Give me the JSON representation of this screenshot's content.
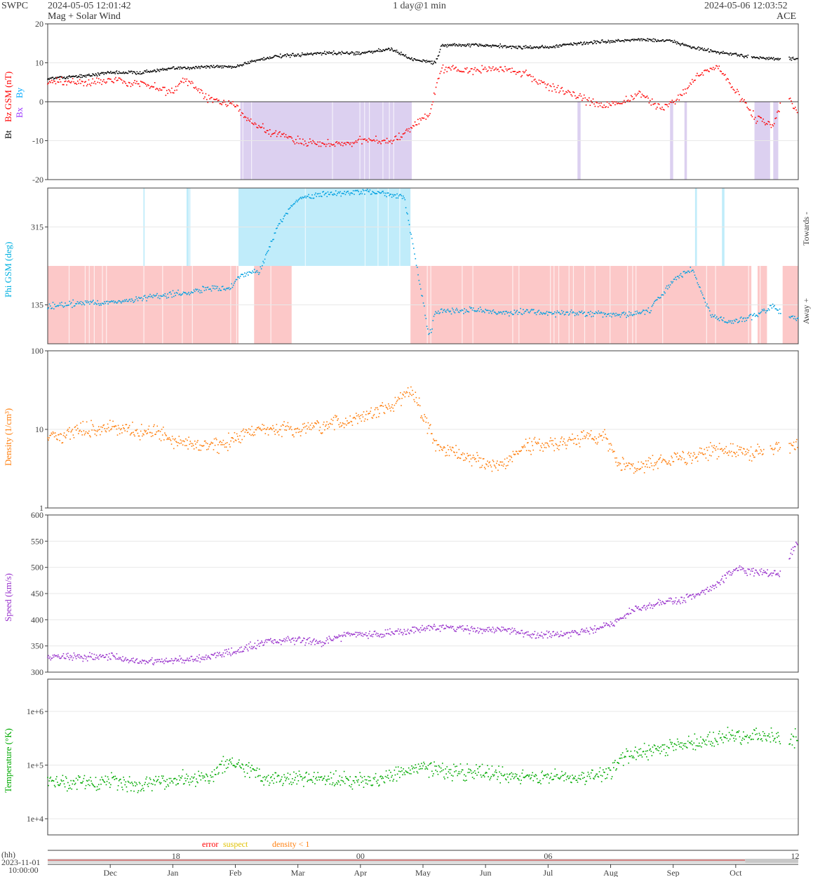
{
  "header": {
    "org": "SWPC",
    "start_time": "2024-05-05 12:01:42",
    "subtitle": "Mag + Solar Wind",
    "cadence": "1 day@1 min",
    "end_time": "2024-05-06 12:03:52",
    "source": "ACE"
  },
  "colors": {
    "bt": "#000000",
    "bz": "#ff0000",
    "bx": "#9933ff",
    "by": "#00aaff",
    "phi": "#00a0e0",
    "density": "#ff7f0e",
    "speed": "#9933cc",
    "temperature": "#00aa00",
    "bz_shade": "#dcd0f0",
    "towards_shade": "#c0ecfa",
    "away_shade": "#fcc8c8",
    "grid": "#e8e8e8"
  },
  "legend": {
    "error": "error",
    "suspect": "suspect",
    "density": "density < 1",
    "error_color": "#ff0000",
    "suspect_color": "#e0c000",
    "density_color": "#ff7f0e"
  },
  "time_axis": {
    "hh_label": "(hh)",
    "start_date": "2023-11-01",
    "start_clock": "10:00:00",
    "hour_ticks": [
      {
        "label": "18",
        "month": 2.05
      },
      {
        "label": "00",
        "month": 5.0
      },
      {
        "label": "06",
        "month": 8.0
      },
      {
        "label": "12",
        "month": 11.95
      }
    ],
    "month_ticks": [
      {
        "label": "Dec",
        "month": 1.0
      },
      {
        "label": "Jan",
        "month": 2.0
      },
      {
        "label": "Feb",
        "month": 3.0
      },
      {
        "label": "Mar",
        "month": 4.0
      },
      {
        "label": "Apr",
        "month": 5.0
      },
      {
        "label": "May",
        "month": 6.0
      },
      {
        "label": "Jun",
        "month": 7.0
      },
      {
        "label": "Jul",
        "month": 8.0
      },
      {
        "label": "Aug",
        "month": 9.0
      },
      {
        "label": "Sep",
        "month": 10.0
      },
      {
        "label": "Oct",
        "month": 11.0
      }
    ],
    "range": [
      0,
      12
    ]
  },
  "chart_data": [
    {
      "type": "scatter",
      "panel": "mag",
      "ylabel_parts": [
        "Bt",
        "Bz GSM (nT)",
        "Bx",
        "By"
      ],
      "ylim": [
        -20,
        20
      ],
      "yticks": [
        -20,
        -10,
        0,
        10,
        20
      ],
      "series": [
        {
          "key": "bt",
          "points": [
            [
              0,
              6
            ],
            [
              0.5,
              6.5
            ],
            [
              1,
              7.5
            ],
            [
              1.5,
              7.5
            ],
            [
              2,
              8.5
            ],
            [
              2.5,
              9
            ],
            [
              3,
              9
            ],
            [
              3.3,
              10.5
            ],
            [
              3.6,
              11.5
            ],
            [
              4,
              12
            ],
            [
              4.5,
              12.5
            ],
            [
              5,
              12.5
            ],
            [
              5.5,
              13.5
            ],
            [
              5.8,
              11
            ],
            [
              6.2,
              10
            ],
            [
              6.3,
              14.5
            ],
            [
              7,
              14.5
            ],
            [
              7.5,
              14
            ],
            [
              8,
              14
            ],
            [
              8.5,
              15
            ],
            [
              9,
              15.5
            ],
            [
              9.5,
              16
            ],
            [
              10,
              15.5
            ],
            [
              10.3,
              14
            ],
            [
              10.6,
              13
            ],
            [
              11,
              12
            ],
            [
              11.3,
              11.5
            ],
            [
              11.6,
              11
            ],
            [
              12,
              11
            ]
          ]
        },
        {
          "key": "bz",
          "points": [
            [
              0,
              5
            ],
            [
              0.5,
              4.8
            ],
            [
              1,
              5.5
            ],
            [
              1.5,
              4.5
            ],
            [
              2,
              2.5
            ],
            [
              2.2,
              6
            ],
            [
              2.4,
              3
            ],
            [
              2.6,
              0.5
            ],
            [
              2.8,
              -0.2
            ],
            [
              3,
              -1
            ],
            [
              3.2,
              -5
            ],
            [
              3.5,
              -7.5
            ],
            [
              4,
              -10
            ],
            [
              4.5,
              -11
            ],
            [
              5,
              -10
            ],
            [
              5.5,
              -10
            ],
            [
              5.8,
              -7
            ],
            [
              6.1,
              -3
            ],
            [
              6.3,
              8.5
            ],
            [
              6.8,
              8
            ],
            [
              7.2,
              8.5
            ],
            [
              7.6,
              7.5
            ],
            [
              8,
              4
            ],
            [
              8.4,
              2
            ],
            [
              8.8,
              -1
            ],
            [
              9.2,
              0
            ],
            [
              9.5,
              2
            ],
            [
              9.8,
              -2
            ],
            [
              10.1,
              1
            ],
            [
              10.4,
              7
            ],
            [
              10.7,
              9
            ],
            [
              11,
              3
            ],
            [
              11.3,
              -4
            ],
            [
              11.6,
              -6
            ],
            [
              11.8,
              2
            ],
            [
              12,
              -3
            ]
          ]
        },
        {
          "key": "bz_shade",
          "intervals": [
            [
              3.08,
              5.82
            ],
            [
              8.47,
              8.52
            ],
            [
              9.95,
              10.0
            ],
            [
              10.18,
              10.22
            ],
            [
              11.3,
              11.55
            ],
            [
              11.6,
              11.68
            ]
          ]
        }
      ]
    },
    {
      "type": "scatter",
      "panel": "phi",
      "ylabel": "Phi GSM (deg)",
      "right_labels": [
        "Towards -",
        "Away +"
      ],
      "ylim": [
        45,
        405
      ],
      "yticks": [
        135,
        315
      ],
      "series": [
        {
          "key": "phi",
          "points": [
            [
              0,
              130
            ],
            [
              0.5,
              140
            ],
            [
              1,
              140
            ],
            [
              1.5,
              150
            ],
            [
              2,
              160
            ],
            [
              2.3,
              165
            ],
            [
              2.6,
              175
            ],
            [
              2.9,
              170
            ],
            [
              3.1,
              205
            ],
            [
              3.4,
              215
            ],
            [
              3.7,
              325
            ],
            [
              4,
              380
            ],
            [
              4.4,
              390
            ],
            [
              4.8,
              395
            ],
            [
              5.3,
              395
            ],
            [
              5.7,
              385
            ],
            [
              6.1,
              60
            ],
            [
              6.2,
              120
            ],
            [
              6.8,
              125
            ],
            [
              7.2,
              115
            ],
            [
              7.6,
              120
            ],
            [
              8,
              117
            ],
            [
              8.4,
              115
            ],
            [
              8.8,
              115
            ],
            [
              9.2,
              110
            ],
            [
              9.6,
              120
            ],
            [
              10,
              190
            ],
            [
              10.3,
              220
            ],
            [
              10.6,
              110
            ],
            [
              10.9,
              95
            ],
            [
              11.2,
              105
            ],
            [
              11.6,
              130
            ],
            [
              12,
              100
            ]
          ]
        },
        {
          "key": "towards_shade",
          "intervals": [
            [
              3.05,
              5.8
            ],
            [
              1.53,
              1.55
            ],
            [
              2.22,
              2.28
            ],
            [
              10.35,
              10.38
            ],
            [
              10.78,
              10.82
            ]
          ]
        },
        {
          "key": "away_shade",
          "intervals": [
            [
              0,
              3.05
            ],
            [
              3.3,
              3.9
            ],
            [
              5.8,
              11.25
            ],
            [
              11.35,
              11.5
            ],
            [
              11.75,
              12
            ]
          ]
        }
      ]
    },
    {
      "type": "scatter",
      "panel": "density",
      "ylabel": "Density (1/cm³)",
      "yscale": "log",
      "ylim": [
        1,
        100
      ],
      "yticks": [
        1,
        10,
        100
      ],
      "series": [
        {
          "key": "density",
          "points": [
            [
              0,
              8
            ],
            [
              0.5,
              9.5
            ],
            [
              1,
              11
            ],
            [
              1.5,
              9
            ],
            [
              1.8,
              9
            ],
            [
              2,
              7
            ],
            [
              2.3,
              6.5
            ],
            [
              2.6,
              6
            ],
            [
              3,
              7.5
            ],
            [
              3.2,
              9.5
            ],
            [
              3.7,
              10
            ],
            [
              4.2,
              10
            ],
            [
              4.7,
              12
            ],
            [
              5.1,
              15
            ],
            [
              5.5,
              20
            ],
            [
              5.8,
              30
            ],
            [
              6.0,
              15
            ],
            [
              6.2,
              6
            ],
            [
              6.6,
              5
            ],
            [
              7.0,
              3.5
            ],
            [
              7.3,
              3.5
            ],
            [
              7.6,
              6
            ],
            [
              8,
              6.5
            ],
            [
              8.5,
              7.5
            ],
            [
              8.9,
              8.5
            ],
            [
              9.1,
              4
            ],
            [
              9.4,
              3
            ],
            [
              9.8,
              4.2
            ],
            [
              10.3,
              4.5
            ],
            [
              10.7,
              5.5
            ],
            [
              11,
              5.2
            ],
            [
              11.3,
              5
            ],
            [
              11.7,
              6
            ],
            [
              12,
              6.5
            ]
          ]
        }
      ]
    },
    {
      "type": "scatter",
      "panel": "speed",
      "ylabel": "Speed (km/s)",
      "ylim": [
        300,
        600
      ],
      "yticks": [
        300,
        350,
        400,
        450,
        500,
        550,
        600
      ],
      "series": [
        {
          "key": "speed",
          "points": [
            [
              0,
              330
            ],
            [
              0.5,
              330
            ],
            [
              1,
              330
            ],
            [
              1.5,
              318
            ],
            [
              2,
              322
            ],
            [
              2.4,
              325
            ],
            [
              2.8,
              335
            ],
            [
              3.1,
              342
            ],
            [
              3.5,
              360
            ],
            [
              4,
              360
            ],
            [
              4.4,
              357
            ],
            [
              4.8,
              372
            ],
            [
              5.3,
              372
            ],
            [
              5.7,
              378
            ],
            [
              6.1,
              385
            ],
            [
              6.5,
              385
            ],
            [
              6.9,
              380
            ],
            [
              7.3,
              382
            ],
            [
              7.7,
              372
            ],
            [
              8.2,
              372
            ],
            [
              8.6,
              378
            ],
            [
              9,
              390
            ],
            [
              9.4,
              420
            ],
            [
              9.8,
              432
            ],
            [
              10.2,
              440
            ],
            [
              10.6,
              460
            ],
            [
              11,
              495
            ],
            [
              11.4,
              490
            ],
            [
              11.7,
              485
            ],
            [
              11.9,
              530
            ],
            [
              12,
              550
            ]
          ]
        }
      ]
    },
    {
      "type": "scatter",
      "panel": "temperature",
      "ylabel": "Temperature (°K)",
      "yscale": "log",
      "ylim": [
        5000,
        4000000
      ],
      "yticks": [
        10000,
        100000,
        1000000
      ],
      "ytick_labels": [
        "1e+4",
        "1e+5",
        "1e+6"
      ],
      "series": [
        {
          "key": "temperature",
          "points": [
            [
              0,
              50000
            ],
            [
              0.5,
              45000
            ],
            [
              1,
              50000
            ],
            [
              1.4,
              40000
            ],
            [
              1.8,
              50000
            ],
            [
              2.3,
              55000
            ],
            [
              2.6,
              60000
            ],
            [
              2.9,
              120000
            ],
            [
              3.2,
              80000
            ],
            [
              3.5,
              55000
            ],
            [
              4,
              60000
            ],
            [
              4.5,
              55000
            ],
            [
              5,
              50000
            ],
            [
              5.5,
              60000
            ],
            [
              6,
              90000
            ],
            [
              6.5,
              75000
            ],
            [
              7,
              70000
            ],
            [
              7.5,
              65000
            ],
            [
              8,
              60000
            ],
            [
              8.5,
              60000
            ],
            [
              9,
              70000
            ],
            [
              9.2,
              140000
            ],
            [
              9.6,
              180000
            ],
            [
              10,
              220000
            ],
            [
              10.5,
              290000
            ],
            [
              11,
              350000
            ],
            [
              11.5,
              330000
            ],
            [
              12,
              320000
            ]
          ]
        }
      ]
    }
  ]
}
